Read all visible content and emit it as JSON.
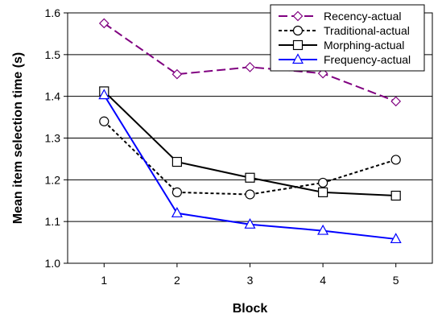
{
  "chart_data": {
    "type": "line",
    "x": [
      1,
      2,
      3,
      4,
      5
    ],
    "xlabel": "Block",
    "ylabel": "Mean item selection time (s)",
    "ylim": [
      1.0,
      1.6
    ],
    "yticks": [
      "1.0",
      "1.1",
      "1.2",
      "1.3",
      "1.4",
      "1.5",
      "1.6"
    ],
    "xticks": [
      "1",
      "2",
      "3",
      "4",
      "5"
    ],
    "grid": "horizontal",
    "legend_position": "top-right",
    "series": [
      {
        "name": "Recency-actual",
        "values": [
          1.575,
          1.453,
          1.47,
          1.455,
          1.388
        ],
        "color": "#800080",
        "dash": "dashed",
        "marker": "diamond"
      },
      {
        "name": "Traditional-actual",
        "values": [
          1.34,
          1.17,
          1.165,
          1.193,
          1.248
        ],
        "color": "#000000",
        "dash": "dotted",
        "marker": "circle"
      },
      {
        "name": "Morphing-actual",
        "values": [
          1.412,
          1.243,
          1.205,
          1.17,
          1.162
        ],
        "color": "#000000",
        "dash": "solid",
        "marker": "square"
      },
      {
        "name": "Frequency-actual",
        "values": [
          1.403,
          1.12,
          1.093,
          1.078,
          1.058
        ],
        "color": "#0000FF",
        "dash": "solid",
        "marker": "triangle"
      }
    ]
  }
}
